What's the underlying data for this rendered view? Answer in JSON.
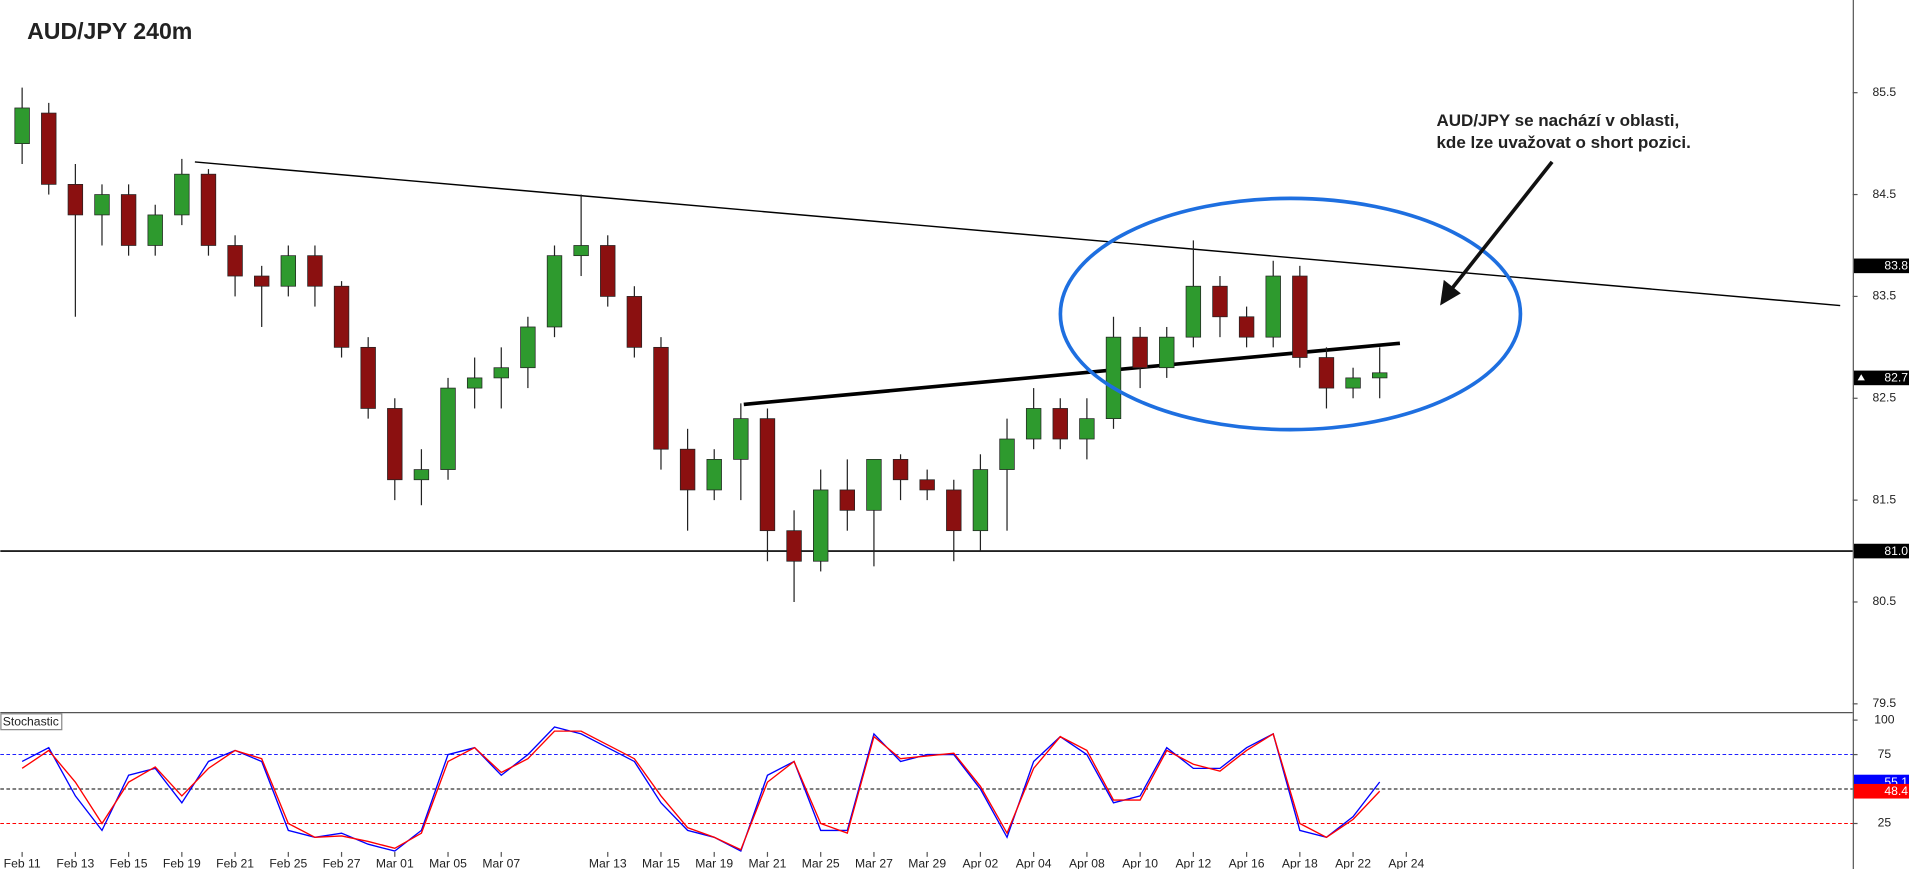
{
  "chart_data": [
    {
      "type": "candlestick",
      "title": "AUD/JPY 240m",
      "x": [
        0,
        1,
        2,
        3,
        4,
        5,
        6,
        7,
        8,
        9,
        10,
        11,
        12,
        13,
        14,
        15,
        16,
        17,
        18,
        19,
        20,
        21,
        22,
        23,
        24,
        25,
        26,
        27,
        28,
        29,
        30,
        31,
        32,
        33,
        34,
        35,
        36,
        37,
        38,
        39,
        40,
        41,
        42,
        43,
        44,
        45,
        46,
        47,
        48,
        49,
        50,
        51
      ],
      "open": [
        85.0,
        85.3,
        84.6,
        84.3,
        84.5,
        84.0,
        84.3,
        84.7,
        84.0,
        83.7,
        83.6,
        83.9,
        83.6,
        83.0,
        82.4,
        81.7,
        81.8,
        82.6,
        82.7,
        82.8,
        83.2,
        83.9,
        84.0,
        83.5,
        83.0,
        82.0,
        81.6,
        81.9,
        82.3,
        81.2,
        80.9,
        81.6,
        81.4,
        81.9,
        81.7,
        81.6,
        81.2,
        81.8,
        82.1,
        82.4,
        82.1,
        82.3,
        83.1,
        82.8,
        83.1,
        83.6,
        83.3,
        83.1,
        83.7,
        82.9,
        82.6,
        82.7
      ],
      "high": [
        85.55,
        85.4,
        84.8,
        84.6,
        84.6,
        84.4,
        84.85,
        84.75,
        84.1,
        83.8,
        84.0,
        84.0,
        83.65,
        83.1,
        82.5,
        82.0,
        82.7,
        82.9,
        83.0,
        83.3,
        84.0,
        84.5,
        84.1,
        83.6,
        83.1,
        82.2,
        82.0,
        82.45,
        82.4,
        81.4,
        81.8,
        81.9,
        81.9,
        81.95,
        81.8,
        81.7,
        81.95,
        82.3,
        82.6,
        82.5,
        82.5,
        83.3,
        83.2,
        83.2,
        84.05,
        83.7,
        83.4,
        83.85,
        83.8,
        83.0,
        82.8,
        83.0
      ],
      "low": [
        84.8,
        84.5,
        83.3,
        84.0,
        83.9,
        83.9,
        84.2,
        83.9,
        83.5,
        83.2,
        83.5,
        83.4,
        82.9,
        82.3,
        81.5,
        81.45,
        81.7,
        82.4,
        82.4,
        82.6,
        83.1,
        83.7,
        83.4,
        82.9,
        81.8,
        81.2,
        81.5,
        81.5,
        80.9,
        80.5,
        80.8,
        81.2,
        80.85,
        81.5,
        81.5,
        80.9,
        81.0,
        81.2,
        82.0,
        82.0,
        81.9,
        82.2,
        82.6,
        82.7,
        83.0,
        83.1,
        83.0,
        83.0,
        82.8,
        82.4,
        82.5,
        82.5
      ],
      "close": [
        85.35,
        84.6,
        84.3,
        84.5,
        84.0,
        84.3,
        84.7,
        84.0,
        83.7,
        83.6,
        83.9,
        83.6,
        83.0,
        82.4,
        81.7,
        81.8,
        82.6,
        82.7,
        82.8,
        83.2,
        83.9,
        84.0,
        83.5,
        83.0,
        82.0,
        81.6,
        81.9,
        82.3,
        81.2,
        80.9,
        81.6,
        81.4,
        81.9,
        81.7,
        81.6,
        81.2,
        81.8,
        82.1,
        82.4,
        82.1,
        82.3,
        83.1,
        82.8,
        83.1,
        83.6,
        83.3,
        83.1,
        83.7,
        82.9,
        82.6,
        82.7,
        82.75
      ],
      "up_color": "#2e9a2e",
      "down_color": "#8b1010",
      "xlim": [
        -0.82,
        68.77
      ],
      "ylim": [
        79.42,
        86.41
      ],
      "yticks": [
        79.5,
        80.5,
        81.5,
        82.5,
        83.5,
        84.5,
        85.5
      ],
      "lines": [
        {
          "x": [
            6.49,
            68.3
          ],
          "y": [
            84.82,
            83.41
          ],
          "width": 1.2
        },
        {
          "x": [
            27.11,
            51.76
          ],
          "y": [
            82.44,
            83.04
          ],
          "width": 3
        }
      ],
      "hline": {
        "value": 81,
        "label": "81.0"
      },
      "price_markers": [
        83.8,
        82.7
      ],
      "annotation": [
        "AUD/JPY se nachází v oblasti,",
        "kde lze uvažovat o short pozici."
      ]
    },
    {
      "type": "line",
      "title": "Stochastic",
      "x": [
        0,
        1,
        2,
        3,
        4,
        5,
        6,
        7,
        8,
        9,
        10,
        11,
        12,
        13,
        14,
        15,
        16,
        17,
        18,
        19,
        20,
        21,
        22,
        23,
        24,
        25,
        26,
        27,
        28,
        29,
        30,
        31,
        32,
        33,
        34,
        35,
        36,
        37,
        38,
        39,
        40,
        41,
        42,
        43,
        44,
        45,
        46,
        47,
        48,
        49,
        50,
        51
      ],
      "series": [
        {
          "color": "#0000ff",
          "values": [
            70,
            80,
            45,
            20,
            60,
            65,
            40,
            70,
            78,
            70,
            20,
            15,
            18,
            10,
            5,
            20,
            75,
            80,
            60,
            75,
            95,
            90,
            80,
            70,
            40,
            20,
            15,
            5,
            60,
            70,
            20,
            20,
            90,
            70,
            75,
            75,
            50,
            15,
            70,
            88,
            75,
            40,
            45,
            80,
            65,
            65,
            80,
            90,
            20,
            15,
            30,
            55.1
          ]
        },
        {
          "color": "#ff0000",
          "values": [
            65,
            78,
            55,
            25,
            55,
            66,
            45,
            65,
            78,
            72,
            25,
            15,
            16,
            12,
            7,
            18,
            70,
            80,
            62,
            72,
            92,
            92,
            82,
            72,
            45,
            22,
            15,
            6,
            55,
            70,
            25,
            18,
            88,
            72,
            74,
            76,
            52,
            18,
            65,
            88,
            78,
            42,
            42,
            78,
            68,
            63,
            78,
            90,
            25,
            15,
            28,
            48.4
          ]
        }
      ],
      "levels": [
        25,
        50,
        75
      ],
      "level_colors": [
        "#ff0000",
        "#000000",
        "#0000ff"
      ],
      "xlim": [
        -0.82,
        68.77
      ],
      "ylim": [
        -8,
        105
      ],
      "yticks": [
        25,
        75,
        100
      ],
      "xticks": [
        {
          "value": 0,
          "label": "Feb 11"
        },
        {
          "value": 2,
          "label": "Feb 13"
        },
        {
          "value": 4,
          "label": "Feb 15"
        },
        {
          "value": 6,
          "label": "Feb 19"
        },
        {
          "value": 8,
          "label": "Feb 21"
        },
        {
          "value": 10,
          "label": "Feb 25"
        },
        {
          "value": 12,
          "label": "Feb 27"
        },
        {
          "value": 14,
          "label": "Mar 01"
        },
        {
          "value": 16,
          "label": "Mar 05"
        },
        {
          "value": 18,
          "label": "Mar 07"
        },
        {
          "value": 22,
          "label": "Mar 13"
        },
        {
          "value": 24,
          "label": "Mar 15"
        },
        {
          "value": 26,
          "label": "Mar 19"
        },
        {
          "value": 28,
          "label": "Mar 21"
        },
        {
          "value": 30,
          "label": "Mar 25"
        },
        {
          "value": 32,
          "label": "Mar 27"
        },
        {
          "value": 34,
          "label": "Mar 29"
        },
        {
          "value": 36,
          "label": "Apr 02"
        },
        {
          "value": 38,
          "label": "Apr 04"
        },
        {
          "value": 40,
          "label": "Apr 08"
        },
        {
          "value": 42,
          "label": "Apr 10"
        },
        {
          "value": 44,
          "label": "Apr 12"
        },
        {
          "value": 46,
          "label": "Apr 16"
        },
        {
          "value": 48,
          "label": "Apr 18"
        },
        {
          "value": 50,
          "label": "Apr 22"
        },
        {
          "value": 52,
          "label": "Apr 24"
        }
      ]
    }
  ]
}
